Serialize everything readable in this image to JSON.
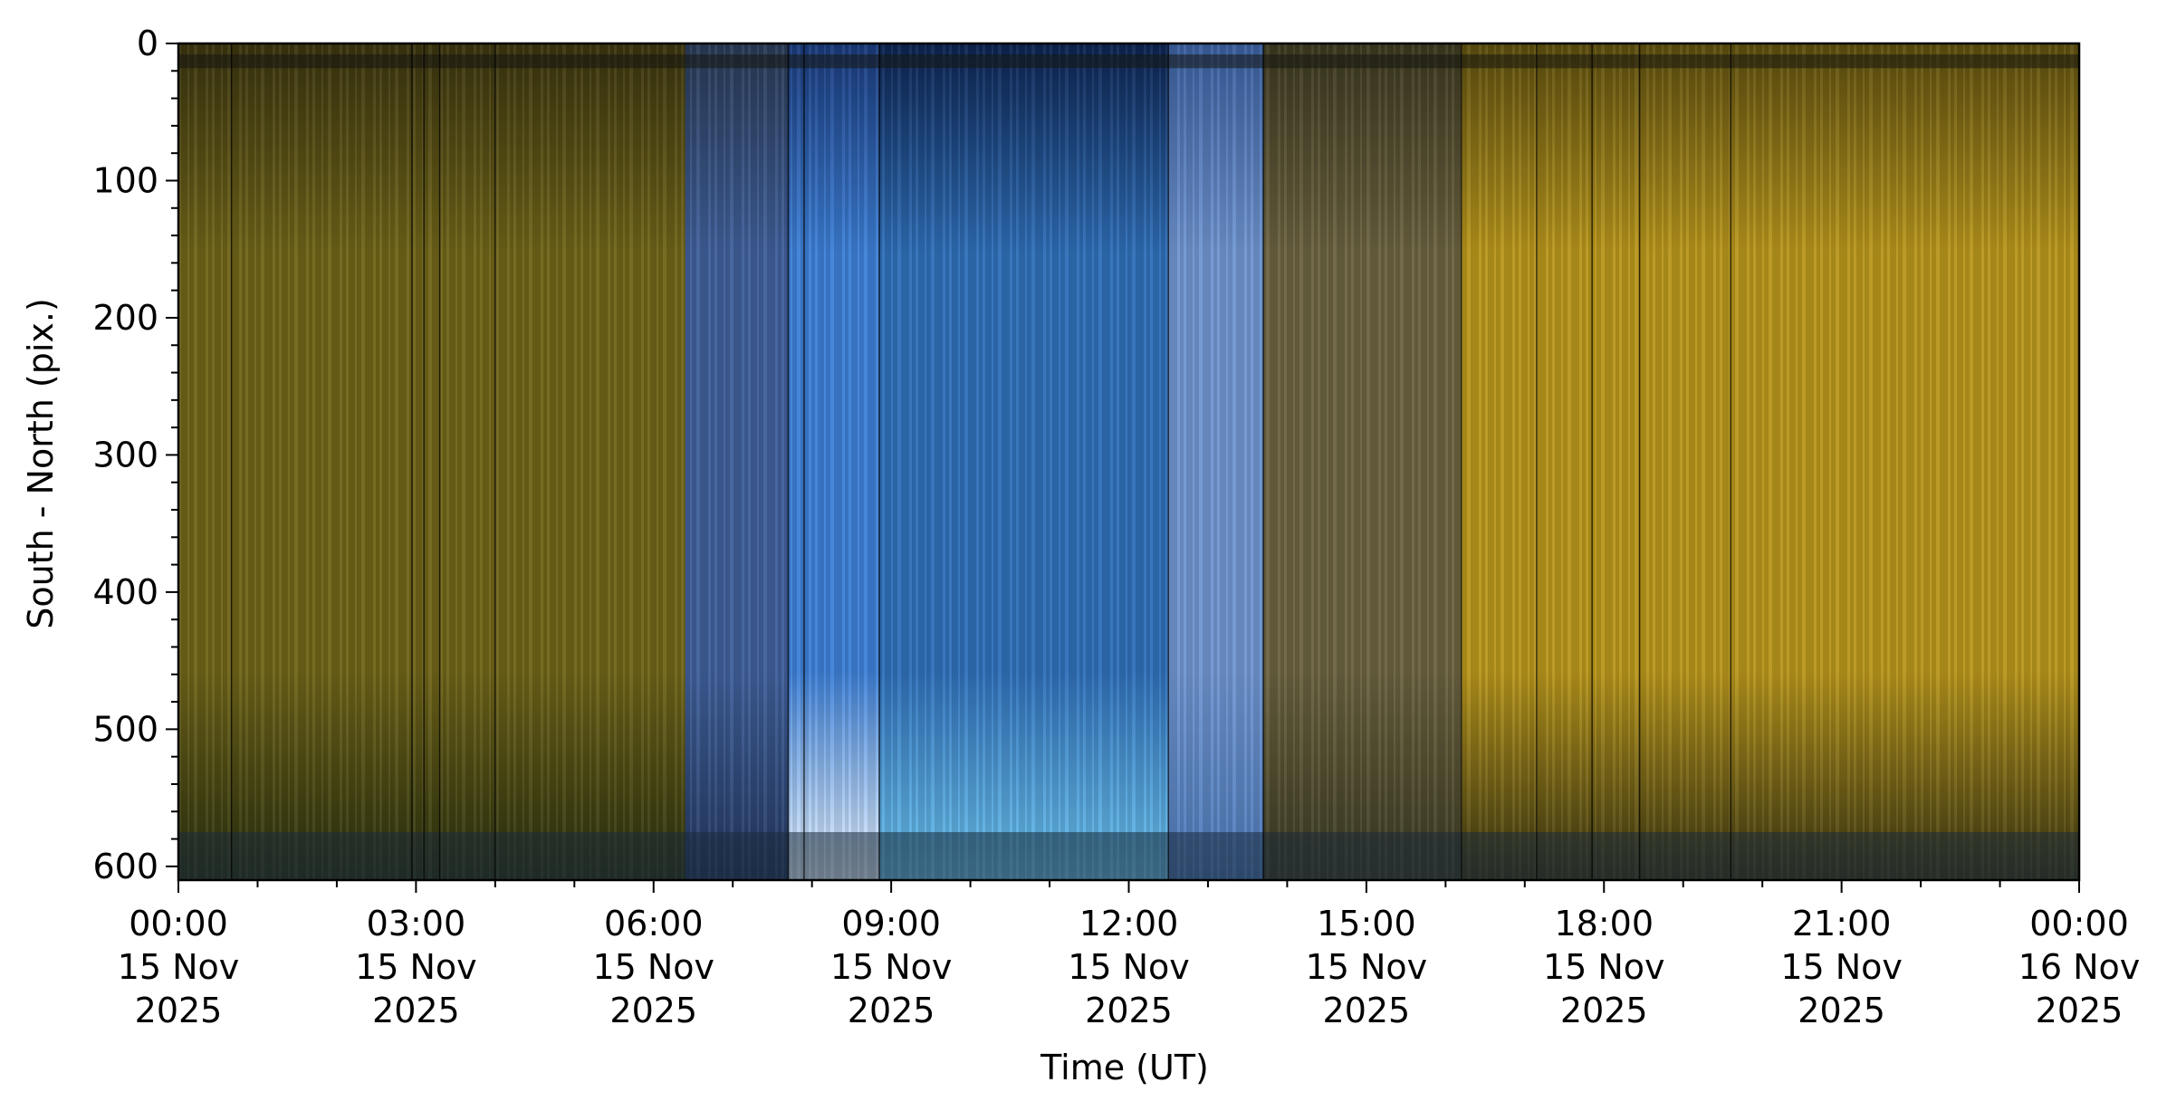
{
  "chart_data": {
    "type": "heatmap",
    "title": "",
    "xlabel": "Time (UT)",
    "ylabel": "South - North (pix.)",
    "x_ticks": [
      {
        "hour": 0,
        "lines": [
          "00:00",
          "15 Nov",
          "2025"
        ]
      },
      {
        "hour": 3,
        "lines": [
          "03:00",
          "15 Nov",
          "2025"
        ]
      },
      {
        "hour": 6,
        "lines": [
          "06:00",
          "15 Nov",
          "2025"
        ]
      },
      {
        "hour": 9,
        "lines": [
          "09:00",
          "15 Nov",
          "2025"
        ]
      },
      {
        "hour": 12,
        "lines": [
          "12:00",
          "15 Nov",
          "2025"
        ]
      },
      {
        "hour": 15,
        "lines": [
          "15:00",
          "15 Nov",
          "2025"
        ]
      },
      {
        "hour": 18,
        "lines": [
          "18:00",
          "15 Nov",
          "2025"
        ]
      },
      {
        "hour": 21,
        "lines": [
          "21:00",
          "15 Nov",
          "2025"
        ]
      },
      {
        "hour": 24,
        "lines": [
          "00:00",
          "16 Nov",
          "2025"
        ]
      }
    ],
    "y_ticks": [
      0,
      100,
      200,
      300,
      400,
      500,
      600
    ],
    "xlim_hours": [
      0,
      24
    ],
    "ylim": [
      0,
      610
    ],
    "y_inverted": true,
    "grid": false,
    "color_segments": [
      {
        "start_hour": 0.0,
        "end_hour": 6.4,
        "top": "#3a3410",
        "mid": "#6f6418",
        "bottom": "#2a3010"
      },
      {
        "start_hour": 6.4,
        "end_hour": 7.7,
        "top": "#2a3a55",
        "mid": "#3f5f9a",
        "bottom": "#24385e"
      },
      {
        "start_hour": 7.7,
        "end_hour": 8.85,
        "top": "#1a3a7a",
        "mid": "#3d7fd6",
        "bottom": "#e8f4ff"
      },
      {
        "start_hour": 8.85,
        "end_hour": 12.5,
        "top": "#0d2450",
        "mid": "#2f6fb8",
        "bottom": "#6cc4ee"
      },
      {
        "start_hour": 12.5,
        "end_hour": 13.7,
        "top": "#3a5f9e",
        "mid": "#6f95d0",
        "bottom": "#4e7ab8"
      },
      {
        "start_hour": 13.7,
        "end_hour": 16.2,
        "top": "#3c3820",
        "mid": "#6a6240",
        "bottom": "#3a3a22"
      },
      {
        "start_hour": 16.2,
        "end_hour": 24.0,
        "top": "#5c4e10",
        "mid": "#b8961c",
        "bottom": "#3a3612"
      }
    ],
    "dark_lines_hours": [
      0.67,
      2.95,
      3.1,
      3.3,
      4.0,
      7.7,
      7.9,
      8.85,
      12.5,
      13.7,
      16.2,
      17.15,
      17.85,
      18.45,
      19.6
    ],
    "horizontal_bands_pix": [
      {
        "from": 8,
        "to": 18,
        "color": "#151510"
      },
      {
        "from": 575,
        "to": 610,
        "color": "#1a2a3a"
      }
    ]
  }
}
